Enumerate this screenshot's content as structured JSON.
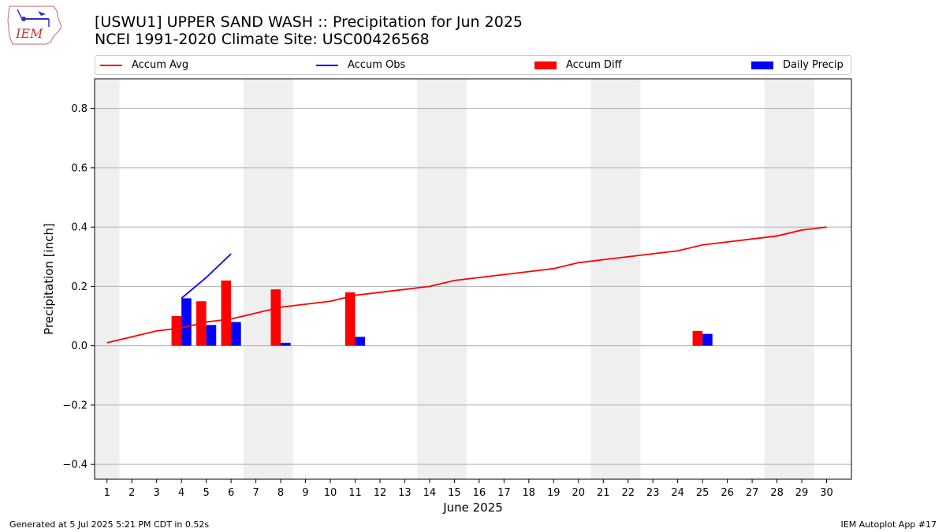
{
  "header": {
    "title_line1": "[USWU1] UPPER SAND WASH :: Precipitation for Jun 2025",
    "title_line2": "NCEI 1991-2020 Climate Site: USC00426568"
  },
  "logo": {
    "text": "IEM"
  },
  "legend": {
    "items": [
      {
        "label": "Accum Avg",
        "color": "#ff0000"
      },
      {
        "label": "Accum Obs",
        "color": "#0000ff"
      },
      {
        "label": "Accum Diff",
        "color": "#ff0000"
      },
      {
        "label": "Daily Precip",
        "color": "#0000ff"
      }
    ]
  },
  "footer": {
    "left": "Generated at 5 Jul 2025 5:21 PM CDT in 0.52s",
    "right": "IEM Autoplot App #17"
  },
  "chart_data": {
    "type": "bar",
    "xlabel": "June 2025",
    "ylabel": "Precipitation [inch]",
    "xlim": [
      0.5,
      31
    ],
    "ylim": [
      -0.45,
      0.9
    ],
    "yticks": [
      -0.4,
      -0.2,
      0.0,
      0.2,
      0.4,
      0.6,
      0.8
    ],
    "ytick_labels": [
      "−0.4",
      "−0.2",
      "0.0",
      "0.2",
      "0.4",
      "0.6",
      "0.8"
    ],
    "xticks": [
      1,
      2,
      3,
      4,
      5,
      6,
      7,
      8,
      9,
      10,
      11,
      12,
      13,
      14,
      15,
      16,
      17,
      18,
      19,
      20,
      21,
      22,
      23,
      24,
      25,
      26,
      27,
      28,
      29,
      30
    ],
    "grid": "horizontal",
    "weekend_shading": [
      [
        0.5,
        1.5
      ],
      [
        6.5,
        8.5
      ],
      [
        13.5,
        15.5
      ],
      [
        20.5,
        22.5
      ],
      [
        27.5,
        29.5
      ]
    ],
    "accum_avg": {
      "name": "Accum Avg",
      "x": [
        1,
        2,
        3,
        4,
        5,
        6,
        7,
        8,
        9,
        10,
        11,
        12,
        13,
        14,
        15,
        16,
        17,
        18,
        19,
        20,
        21,
        22,
        23,
        24,
        25,
        26,
        27,
        28,
        29,
        30
      ],
      "y": [
        0.01,
        0.03,
        0.05,
        0.06,
        0.08,
        0.09,
        0.11,
        0.13,
        0.14,
        0.15,
        0.17,
        0.18,
        0.19,
        0.2,
        0.22,
        0.23,
        0.24,
        0.25,
        0.26,
        0.28,
        0.29,
        0.3,
        0.31,
        0.32,
        0.34,
        0.35,
        0.36,
        0.37,
        0.39,
        0.4
      ],
      "color": "#ff0000"
    },
    "accum_obs": {
      "name": "Accum Obs",
      "x": [
        4,
        5,
        6
      ],
      "y": [
        0.16,
        0.23,
        0.31
      ],
      "color": "#0000ff"
    },
    "accum_diff": {
      "name": "Accum Diff",
      "x": [
        4,
        5,
        6,
        8,
        11,
        25
      ],
      "y": [
        0.1,
        0.15,
        0.22,
        0.19,
        0.18,
        0.05
      ],
      "color": "#ff0000"
    },
    "daily_precip": {
      "name": "Daily Precip",
      "x": [
        4,
        5,
        6,
        8,
        11,
        25
      ],
      "y": [
        0.16,
        0.07,
        0.08,
        0.01,
        0.03,
        0.04
      ],
      "color": "#0000ff"
    }
  }
}
